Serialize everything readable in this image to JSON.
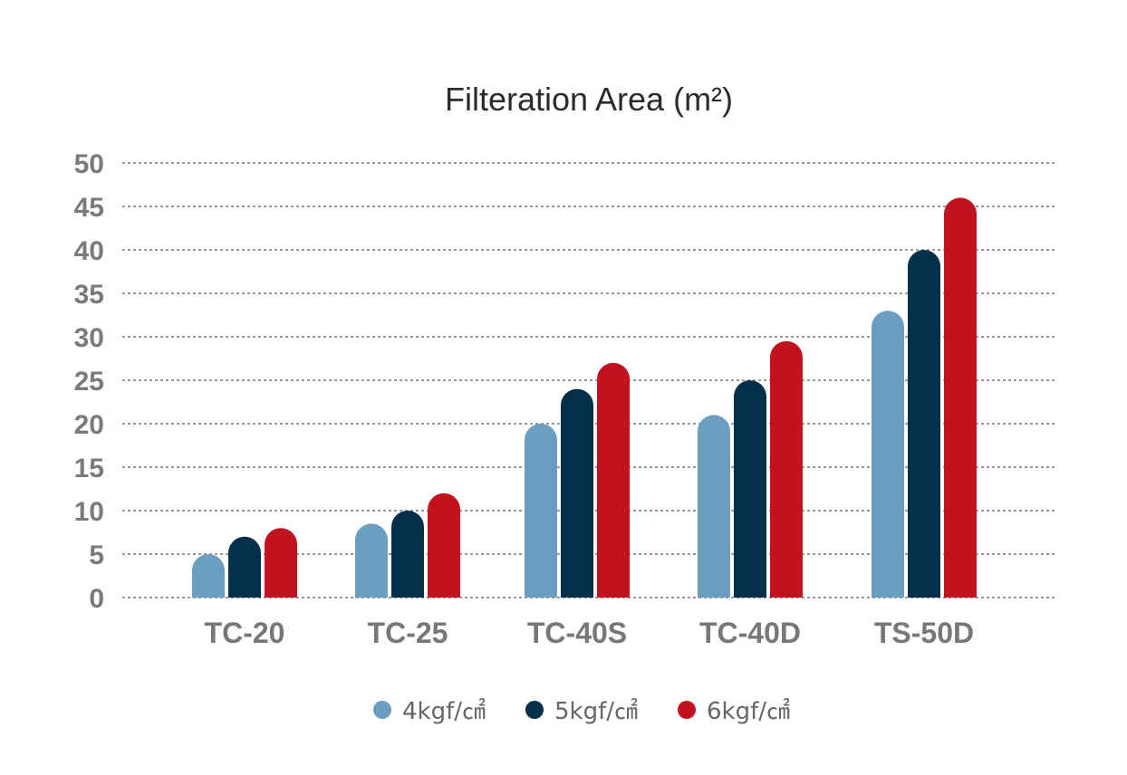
{
  "chart_data": {
    "type": "bar",
    "title": "Filteration Area (m²)",
    "xlabel": "",
    "ylabel": "",
    "categories": [
      "TC-20",
      "TC-25",
      "TC-40S",
      "TC-40D",
      "TS-50D"
    ],
    "series": [
      {
        "name": "4kgf/㎠",
        "color": "#6a9dbf",
        "values": [
          5,
          8.5,
          20,
          21,
          33
        ]
      },
      {
        "name": "5kgf/㎠",
        "color": "#032f4a",
        "values": [
          7,
          10,
          24,
          25,
          40
        ]
      },
      {
        "name": "6kgf/㎠",
        "color": "#c2121f",
        "values": [
          8,
          12,
          27,
          29.5,
          46
        ]
      }
    ],
    "ylim": [
      0,
      50
    ],
    "yticks": [
      "0",
      "5",
      "10",
      "15",
      "20",
      "25",
      "30",
      "35",
      "40",
      "45",
      "50"
    ],
    "grid": true,
    "legend_position": "bottom"
  }
}
